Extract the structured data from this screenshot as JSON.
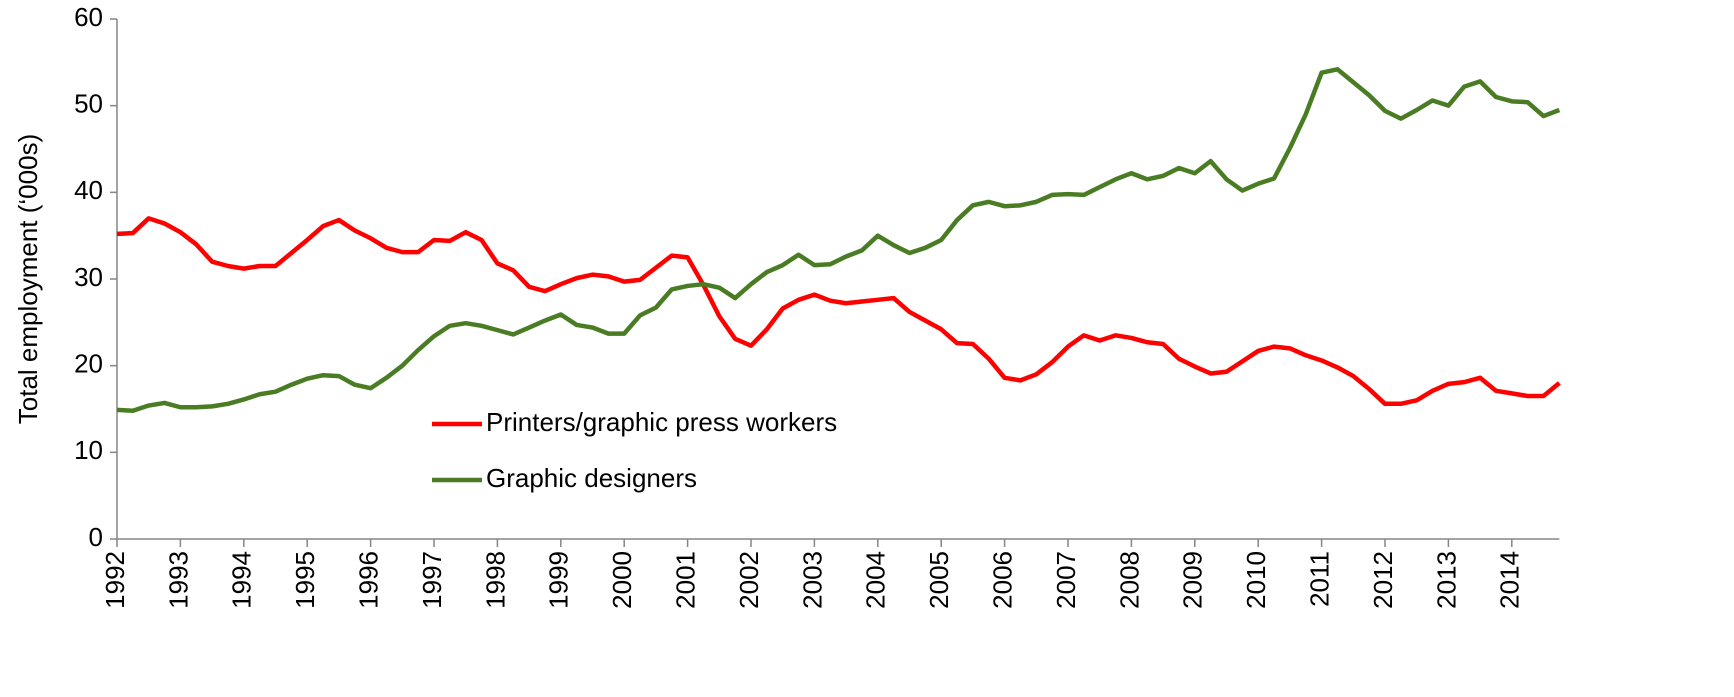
{
  "chart_data": {
    "type": "line",
    "y_label": "Total employment (‘000s)",
    "categories": [
      "1992",
      null,
      null,
      null,
      "1993",
      null,
      null,
      null,
      "1994",
      null,
      null,
      null,
      "1995",
      null,
      null,
      null,
      "1996",
      null,
      null,
      null,
      "1997",
      null,
      null,
      null,
      "1998",
      null,
      null,
      null,
      "1999",
      null,
      null,
      null,
      "2000",
      null,
      null,
      null,
      "2001",
      null,
      null,
      null,
      "2002",
      null,
      null,
      null,
      "2003",
      null,
      null,
      null,
      "2004",
      null,
      null,
      null,
      "2005",
      null,
      null,
      null,
      "2006",
      null,
      null,
      null,
      "2007",
      null,
      null,
      null,
      "2008",
      null,
      null,
      null,
      "2009",
      null,
      null,
      null,
      "2010",
      null,
      null,
      null,
      "2011",
      null,
      null,
      null,
      "2012",
      null,
      null,
      null,
      "2013",
      null,
      null,
      null,
      "2014",
      null,
      null,
      null
    ],
    "series": [
      {
        "name": "Printers/graphic press workers",
        "color": "#ff0000",
        "values": [
          35.2,
          35.3,
          37.0,
          36.4,
          35.4,
          34.0,
          32.0,
          31.5,
          31.2,
          31.5,
          31.5,
          33.0,
          34.5,
          36.1,
          36.8,
          35.6,
          34.7,
          33.6,
          33.1,
          33.1,
          34.5,
          34.4,
          35.4,
          34.5,
          31.8,
          31.0,
          29.1,
          28.6,
          29.4,
          30.1,
          30.5,
          30.3,
          29.7,
          29.9,
          31.3,
          32.7,
          32.5,
          29.3,
          25.7,
          23.1,
          22.3,
          24.2,
          26.6,
          27.6,
          28.2,
          27.5,
          27.2,
          27.4,
          27.6,
          27.8,
          26.2,
          25.2,
          24.2,
          22.6,
          22.5,
          20.8,
          18.6,
          18.3,
          19.0,
          20.4,
          22.2,
          23.5,
          22.9,
          23.5,
          23.2,
          22.7,
          22.5,
          20.8,
          19.9,
          19.1,
          19.3,
          20.5,
          21.7,
          22.2,
          22.0,
          21.2,
          20.6,
          19.8,
          18.8,
          17.3,
          15.6,
          15.6,
          16.0,
          17.1,
          17.9,
          18.1,
          18.6,
          17.1,
          16.8,
          16.5,
          16.5,
          18.0
        ]
      },
      {
        "name": "Graphic designers",
        "color": "#4a7d23",
        "values": [
          14.9,
          14.8,
          15.4,
          15.7,
          15.2,
          15.2,
          15.3,
          15.6,
          16.1,
          16.7,
          17.0,
          17.8,
          18.5,
          18.9,
          18.8,
          17.8,
          17.4,
          18.6,
          20.0,
          21.8,
          23.4,
          24.6,
          24.9,
          24.6,
          24.1,
          23.6,
          24.4,
          25.2,
          25.9,
          24.7,
          24.4,
          23.7,
          23.7,
          25.8,
          26.7,
          28.8,
          29.2,
          29.4,
          29.0,
          27.8,
          29.4,
          30.8,
          31.6,
          32.8,
          31.6,
          31.7,
          32.6,
          33.3,
          35.0,
          33.9,
          33.0,
          33.6,
          34.5,
          36.8,
          38.5,
          38.9,
          38.4,
          38.5,
          38.9,
          39.7,
          39.8,
          39.7,
          40.6,
          41.5,
          42.2,
          41.5,
          41.9,
          42.8,
          42.2,
          43.6,
          41.5,
          40.2,
          41.0,
          41.6,
          45.1,
          49.0,
          53.8,
          54.2,
          52.7,
          51.2,
          49.4,
          48.5,
          49.5,
          50.6,
          50.0,
          52.2,
          52.8,
          51.0,
          50.5,
          50.4,
          48.8,
          49.5
        ]
      }
    ],
    "ylim": [
      0,
      60
    ],
    "yticks": [
      0,
      10,
      20,
      30,
      40,
      50,
      60
    ],
    "grid": false,
    "legend": "lower left"
  }
}
